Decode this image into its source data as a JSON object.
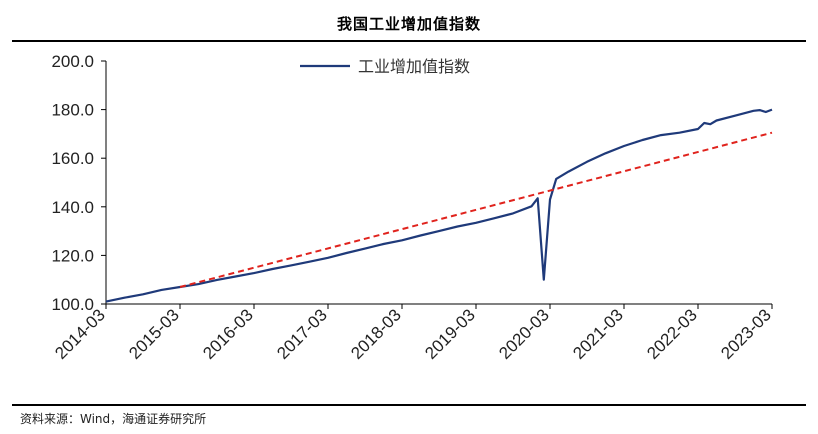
{
  "chart_title": "我国工业增加值指数",
  "source": "资料来源：Wind，海通证券研究所",
  "chart_data": {
    "type": "line",
    "title": "我国工业增加值指数",
    "ylim": [
      100,
      200
    ],
    "yticks": [
      "100.0",
      "120.0",
      "140.0",
      "160.0",
      "180.0",
      "200.0"
    ],
    "xticks": [
      "2014-03",
      "2015-03",
      "2016-03",
      "2017-03",
      "2018-03",
      "2019-03",
      "2020-03",
      "2021-03",
      "2022-03",
      "2023-03"
    ],
    "legend": {
      "position": "top-center",
      "entries": [
        "工业增加值指数"
      ]
    },
    "series": [
      {
        "name": "工业增加值指数",
        "color": "#1f3a7a",
        "points": [
          [
            "2014-03",
            101.0
          ],
          [
            "2014-06",
            102.6
          ],
          [
            "2014-09",
            104.0
          ],
          [
            "2014-12",
            105.8
          ],
          [
            "2015-03",
            107.0
          ],
          [
            "2015-06",
            108.2
          ],
          [
            "2015-09",
            109.9
          ],
          [
            "2015-12",
            111.3
          ],
          [
            "2016-03",
            112.7
          ],
          [
            "2016-06",
            114.4
          ],
          [
            "2016-09",
            115.9
          ],
          [
            "2016-12",
            117.4
          ],
          [
            "2017-03",
            119.0
          ],
          [
            "2017-06",
            121.0
          ],
          [
            "2017-09",
            122.8
          ],
          [
            "2017-12",
            124.7
          ],
          [
            "2018-03",
            126.2
          ],
          [
            "2018-06",
            128.2
          ],
          [
            "2018-09",
            130.0
          ],
          [
            "2018-12",
            131.9
          ],
          [
            "2019-03",
            133.4
          ],
          [
            "2019-06",
            135.3
          ],
          [
            "2019-09",
            137.3
          ],
          [
            "2019-12",
            140.2
          ],
          [
            "2020-01",
            143.5
          ],
          [
            "2020-02",
            110.0
          ],
          [
            "2020-03",
            143.0
          ],
          [
            "2020-04",
            151.5
          ],
          [
            "2020-06",
            154.5
          ],
          [
            "2020-09",
            158.5
          ],
          [
            "2020-12",
            162.0
          ],
          [
            "2021-03",
            165.0
          ],
          [
            "2021-06",
            167.5
          ],
          [
            "2021-09",
            169.5
          ],
          [
            "2021-12",
            170.5
          ],
          [
            "2022-03",
            172.0
          ],
          [
            "2022-04",
            174.5
          ],
          [
            "2022-05",
            174.0
          ],
          [
            "2022-06",
            175.5
          ],
          [
            "2022-09",
            177.5
          ],
          [
            "2022-12",
            179.5
          ],
          [
            "2023-01",
            179.8
          ],
          [
            "2023-02",
            179.0
          ],
          [
            "2023-03",
            180.0
          ]
        ]
      },
      {
        "name": "trend",
        "color": "#e0231d",
        "style": "dashed",
        "points": [
          [
            "2015-03",
            107.0
          ],
          [
            "2023-03",
            170.5
          ]
        ]
      }
    ]
  }
}
